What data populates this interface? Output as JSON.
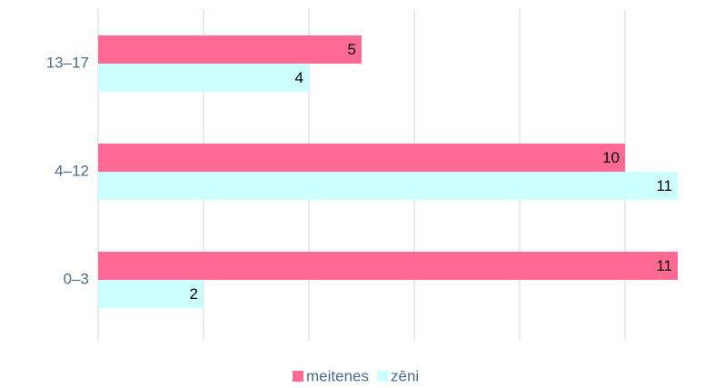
{
  "chart_data": {
    "type": "barh",
    "categories": [
      "13–17",
      "4–12",
      "0–3"
    ],
    "series": [
      {
        "name": "meitenes",
        "color": "#ff6a94",
        "values": [
          5,
          10,
          11
        ]
      },
      {
        "name": "zēni",
        "color": "#ccffff",
        "values": [
          4,
          11,
          2
        ]
      }
    ],
    "xlim": [
      0,
      11
    ],
    "xticks": [
      0,
      2,
      4,
      6,
      8,
      10
    ],
    "grid": true,
    "legend": "bottom"
  }
}
